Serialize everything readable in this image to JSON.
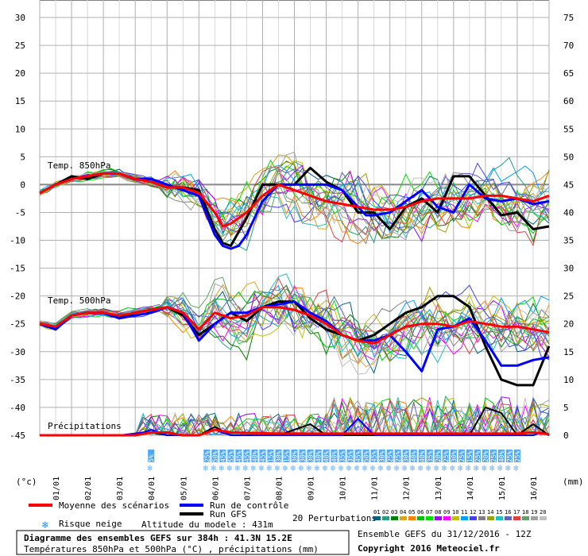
{
  "chart_data": {
    "type": "line",
    "title": "Diagramme des ensembles GEFS sur 384h : 41.3N 15.2E",
    "subtitle": "Températures 850hPa et 500hPa (°C) , précipitations (mm)",
    "left_axis": {
      "unit": "(°c)",
      "ticks": [
        30,
        25,
        20,
        15,
        10,
        5,
        0,
        -5,
        -10,
        -15,
        -20,
        -25,
        -30,
        -35,
        -40,
        -45
      ],
      "range": [
        -45,
        30
      ]
    },
    "right_axis": {
      "unit": "(mm)",
      "ticks": [
        75,
        70,
        65,
        60,
        55,
        50,
        45,
        40,
        35,
        30,
        25,
        20,
        15,
        10,
        5,
        0
      ],
      "range": [
        0,
        75
      ]
    },
    "x_dates": [
      "01/01",
      "02/01",
      "03/01",
      "04/01",
      "05/01",
      "06/01",
      "07/01",
      "08/01",
      "09/01",
      "10/01",
      "11/01",
      "12/01",
      "13/01",
      "14/01",
      "15/01",
      "16/01"
    ],
    "x_range": [
      0,
      64
    ],
    "grid": true,
    "panel_labels": {
      "t850": "Temp. 850hPa",
      "t500": "Temp. 500hPa",
      "precip": "Précipitations"
    },
    "snow_risk_labels": [
      {
        "i": 14,
        "text": "5%"
      },
      {
        "i": 21,
        "text": "25%"
      },
      {
        "i": 22,
        "text": "50%"
      },
      {
        "i": 23,
        "text": "45%"
      },
      {
        "i": 24,
        "text": "55%"
      },
      {
        "i": 25,
        "text": "45%"
      },
      {
        "i": 26,
        "text": "45%"
      },
      {
        "i": 27,
        "text": "40%"
      },
      {
        "i": 28,
        "text": "45%"
      },
      {
        "i": 29,
        "text": "15%"
      },
      {
        "i": 30,
        "text": "30%"
      },
      {
        "i": 31,
        "text": "15%"
      },
      {
        "i": 32,
        "text": "30%"
      },
      {
        "i": 33,
        "text": "30%"
      },
      {
        "i": 34,
        "text": "30%"
      },
      {
        "i": 35,
        "text": "40%"
      },
      {
        "i": 36,
        "text": "40%"
      },
      {
        "i": 37,
        "text": "40%"
      },
      {
        "i": 38,
        "text": "35%"
      },
      {
        "i": 39,
        "text": "35%"
      },
      {
        "i": 40,
        "text": "45%"
      },
      {
        "i": 41,
        "text": "50%"
      },
      {
        "i": 42,
        "text": "45%"
      },
      {
        "i": 43,
        "text": "30%"
      },
      {
        "i": 44,
        "text": "25%"
      },
      {
        "i": 45,
        "text": "25%"
      },
      {
        "i": 46,
        "text": "30%"
      },
      {
        "i": 47,
        "text": "40%"
      },
      {
        "i": 48,
        "text": "40%"
      },
      {
        "i": 49,
        "text": "35%"
      },
      {
        "i": 50,
        "text": "20%"
      },
      {
        "i": 51,
        "text": "25%"
      },
      {
        "i": 52,
        "text": "30%"
      },
      {
        "i": 53,
        "text": "25%"
      },
      {
        "i": 54,
        "text": "15%"
      },
      {
        "i": 55,
        "text": "25%"
      },
      {
        "i": 56,
        "text": "20%"
      },
      {
        "i": 57,
        "text": "25%"
      },
      {
        "i": 58,
        "text": "40%"
      },
      {
        "i": 59,
        "text": "25%"
      },
      {
        "i": 60,
        "text": "25%"
      }
    ],
    "series": [
      {
        "name": "Moyenne des scénarios",
        "color": "#ff0000",
        "group": "t850",
        "x": [
          0,
          2,
          4,
          6,
          8,
          10,
          12,
          14,
          16,
          18,
          20,
          22,
          23,
          24,
          26,
          28,
          30,
          32,
          34,
          36,
          38,
          40,
          42,
          44,
          46,
          48,
          50,
          52,
          54,
          56,
          58,
          60,
          62,
          64
        ],
        "values": [
          -1.5,
          0,
          1,
          1.5,
          2,
          2,
          1,
          0.5,
          -0.5,
          -0.5,
          -1.5,
          -5,
          -7.5,
          -7,
          -5,
          -2,
          0,
          -1,
          -2,
          -3,
          -3.5,
          -4,
          -4.5,
          -4.5,
          -4,
          -3,
          -2.5,
          -2.5,
          -2.5,
          -2,
          -2,
          -2.5,
          -3,
          -2
        ]
      },
      {
        "name": "Run de contrôle",
        "color": "#0000ff",
        "group": "t850",
        "x": [
          0,
          2,
          4,
          6,
          8,
          10,
          12,
          14,
          16,
          18,
          20,
          22,
          23,
          24,
          25,
          26,
          28,
          30,
          32,
          34,
          36,
          38,
          40,
          41,
          42,
          44,
          46,
          48,
          50,
          52,
          54,
          56,
          58,
          60,
          62,
          64
        ],
        "values": [
          -1.5,
          0,
          1,
          1.5,
          2,
          2,
          1,
          1,
          0,
          -1,
          -2,
          -9,
          -11,
          -11.5,
          -11,
          -9,
          -3,
          0,
          0,
          0,
          0,
          -1,
          -4,
          -5.5,
          -5.5,
          -5,
          -3,
          -1,
          -4,
          -5,
          0,
          -2.5,
          -3,
          -2.5,
          -3.5,
          -3
        ]
      },
      {
        "name": "Run GFS",
        "color": "#000000",
        "group": "t850",
        "x": [
          0,
          2,
          4,
          6,
          8,
          10,
          12,
          14,
          16,
          18,
          20,
          22,
          23,
          24,
          26,
          28,
          30,
          32,
          34,
          36,
          38,
          40,
          42,
          44,
          46,
          48,
          50,
          52,
          54,
          56,
          58,
          60,
          62,
          64
        ],
        "values": [
          -1.5,
          0,
          1.5,
          1,
          2,
          2,
          1,
          0.5,
          -0.5,
          -0.5,
          -1,
          -8,
          -10.5,
          -11,
          -6,
          0,
          0,
          0,
          3,
          0.5,
          -1,
          -5,
          -5,
          -8,
          -4,
          -2.5,
          -5,
          1.5,
          1.5,
          -2,
          -5.5,
          -5,
          -8,
          -7.5
        ]
      },
      {
        "name": "Moyenne des scénarios",
        "color": "#ff0000",
        "group": "t500",
        "x": [
          0,
          2,
          4,
          6,
          8,
          10,
          12,
          14,
          16,
          18,
          20,
          22,
          24,
          26,
          28,
          30,
          32,
          34,
          36,
          38,
          40,
          42,
          44,
          46,
          48,
          50,
          52,
          54,
          56,
          58,
          60,
          62,
          64
        ],
        "values": [
          -25,
          -25.5,
          -23.5,
          -23,
          -23,
          -23.5,
          -23,
          -22.5,
          -22,
          -23,
          -26,
          -23,
          -24,
          -23.5,
          -22,
          -22,
          -22.5,
          -23.5,
          -25,
          -27,
          -28,
          -28.5,
          -27,
          -25.5,
          -25,
          -25,
          -25.5,
          -24.5,
          -25,
          -25.5,
          -25.5,
          -26,
          -26.5
        ]
      },
      {
        "name": "Run de contrôle",
        "color": "#0000ff",
        "group": "t500",
        "x": [
          0,
          2,
          4,
          6,
          8,
          10,
          12,
          14,
          16,
          18,
          20,
          22,
          24,
          26,
          28,
          30,
          32,
          34,
          36,
          38,
          40,
          42,
          44,
          46,
          48,
          50,
          52,
          54,
          56,
          58,
          60,
          62,
          64
        ],
        "values": [
          -25,
          -26,
          -23.5,
          -23,
          -23,
          -24,
          -23.5,
          -23,
          -22,
          -23,
          -28,
          -25,
          -23,
          -23,
          -22,
          -21.5,
          -21,
          -23,
          -24.5,
          -27,
          -28,
          -28,
          -27,
          -30,
          -33.5,
          -26,
          -25.5,
          -24,
          -28,
          -32.5,
          -32.5,
          -31.5,
          -31
        ]
      },
      {
        "name": "Run GFS",
        "color": "#000000",
        "group": "t500",
        "x": [
          0,
          2,
          4,
          6,
          8,
          10,
          12,
          14,
          16,
          18,
          20,
          22,
          24,
          26,
          28,
          30,
          32,
          34,
          36,
          38,
          40,
          42,
          44,
          46,
          48,
          50,
          52,
          54,
          56,
          58,
          60,
          62,
          64
        ],
        "values": [
          -25,
          -26,
          -23.5,
          -23,
          -23,
          -24,
          -23,
          -22.5,
          -22,
          -23.5,
          -27,
          -25,
          -23,
          -24.5,
          -22,
          -21,
          -21,
          -24,
          -26,
          -27,
          -28,
          -27,
          -25,
          -23,
          -22,
          -20,
          -20,
          -22,
          -29,
          -35,
          -36,
          -36,
          -29
        ]
      }
    ],
    "precip_series": [
      {
        "name": "Moyenne des scénarios",
        "color": "#ff0000",
        "x": [
          0,
          4,
          8,
          12,
          14,
          16,
          18,
          20,
          21,
          22,
          24,
          30,
          36,
          42,
          48,
          54,
          60,
          62,
          64
        ],
        "values": [
          0,
          0,
          0,
          0,
          0.5,
          0.5,
          0,
          0,
          0.5,
          1,
          0.5,
          0.3,
          0.3,
          0.3,
          0.3,
          0.3,
          0.3,
          0.5,
          0.2
        ]
      },
      {
        "name": "Run de contrôle",
        "color": "#0000ff",
        "x": [
          0,
          10,
          13,
          14,
          16,
          20,
          21,
          22,
          24,
          30,
          34,
          36,
          38,
          40,
          42,
          44,
          46,
          48,
          52,
          54,
          58,
          62,
          63,
          64
        ],
        "values": [
          0,
          0,
          0.5,
          1,
          0,
          0,
          0.5,
          1,
          0,
          0,
          0,
          0,
          0,
          3,
          0,
          0,
          0,
          0,
          0,
          0,
          0,
          0,
          0.5,
          0
        ]
      },
      {
        "name": "Run GFS",
        "color": "#000000",
        "x": [
          0,
          12,
          14,
          16,
          20,
          22,
          24,
          30,
          34,
          36,
          38,
          40,
          42,
          44,
          46,
          48,
          52,
          54,
          56,
          58,
          60,
          62,
          64
        ],
        "values": [
          0,
          0,
          0.5,
          0,
          0,
          1.5,
          0,
          0,
          2,
          0,
          0,
          0,
          0,
          0,
          0,
          0,
          0,
          0,
          5,
          4,
          0,
          2,
          0
        ]
      }
    ],
    "legend": {
      "mean": "Moyenne des scénarios",
      "control": "Run de contrôle",
      "gfs": "Run GFS",
      "perturbations": "20 Perturbations",
      "snow": "Risque neige",
      "altitude": "Altitude du modele : 431m",
      "perturbation_labels": [
        "01",
        "02",
        "03",
        "04",
        "05",
        "06",
        "07",
        "08",
        "09",
        "10",
        "11",
        "12",
        "13",
        "14",
        "15",
        "16",
        "17",
        "18",
        "19",
        "20"
      ],
      "perturbation_colors": [
        "#006080",
        "#20a080",
        "#008000",
        "#e0a020",
        "#ff8000",
        "#00c000",
        "#00e000",
        "#a000ff",
        "#ff00ff",
        "#c0c000",
        "#00a0ff",
        "#4040ff",
        "#808080",
        "#a0a000",
        "#20c0c0",
        "#6060c0",
        "#e04040",
        "#60a060",
        "#a0a0a0",
        "#c0c0c0"
      ]
    },
    "footer": {
      "run": "Ensemble GEFS du 31/12/2016 - 12Z",
      "copyright": "Copyright 2016 Meteociel.fr"
    }
  }
}
